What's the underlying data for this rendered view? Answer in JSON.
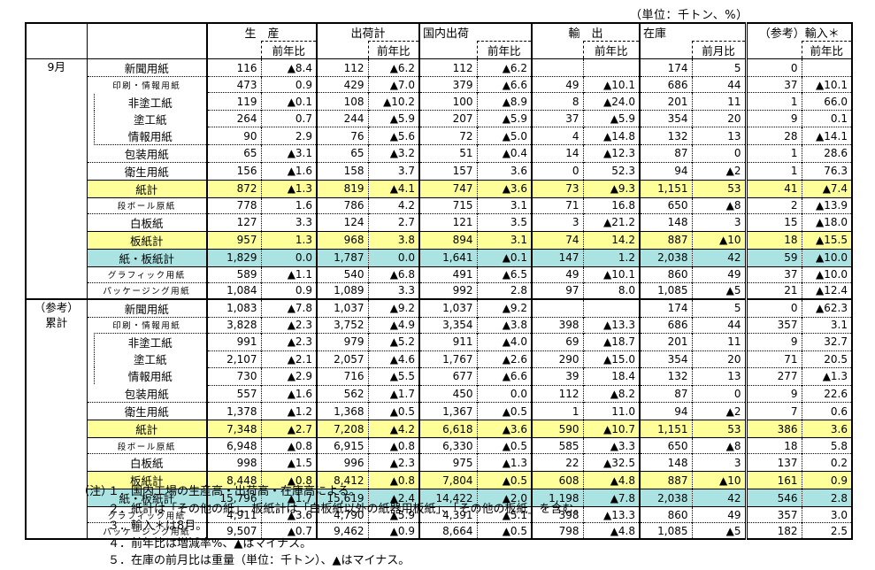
{
  "units_note": "（単位：千トン、%）",
  "colors": {
    "total_row_bg": "#FFFF99",
    "grand_total_row_bg": "#ABE3E3",
    "border": "#000000"
  },
  "table": {
    "column_groups": [
      {
        "label": "生　産",
        "sub_label": "前年比"
      },
      {
        "label": "出荷計",
        "sub_label": "前年比"
      },
      {
        "label": "国内出荷",
        "sub_label": "前年比"
      },
      {
        "label": "輸　出",
        "sub_label": "前年比"
      },
      {
        "label": "在庫",
        "sub_label": "前月比"
      },
      {
        "label": "（参考）輸入＊",
        "sub_label": "前年比"
      }
    ],
    "sections": [
      {
        "label": "9月",
        "label_lines": [
          "9月"
        ],
        "rows": [
          {
            "name": "新聞用紙",
            "type": "normal",
            "values": [
              "116",
              "▲8.4",
              "112",
              "▲6.2",
              "112",
              "▲6.2",
              "",
              "",
              "174",
              "5",
              "0",
              ""
            ]
          },
          {
            "name": "印刷・情報用紙",
            "type": "small",
            "values": [
              "473",
              "0.9",
              "429",
              "▲7.0",
              "379",
              "▲6.6",
              "49",
              "▲10.1",
              "686",
              "44",
              "37",
              "▲10.1"
            ]
          },
          {
            "name": "非塗工紙",
            "type": "sub-first",
            "values": [
              "119",
              "▲0.1",
              "108",
              "▲10.2",
              "100",
              "▲8.9",
              "8",
              "▲24.0",
              "201",
              "11",
              "1",
              "66.0"
            ]
          },
          {
            "name": "塗工紙",
            "type": "sub",
            "values": [
              "264",
              "0.7",
              "244",
              "▲5.9",
              "207",
              "▲5.9",
              "37",
              "▲5.9",
              "354",
              "20",
              "9",
              "0.1"
            ]
          },
          {
            "name": "情報用紙",
            "type": "sub-last",
            "values": [
              "90",
              "2.9",
              "76",
              "▲5.6",
              "72",
              "▲5.0",
              "4",
              "▲14.8",
              "132",
              "13",
              "28",
              "▲14.1"
            ]
          },
          {
            "name": "包装用紙",
            "type": "after-sub",
            "values": [
              "65",
              "▲3.1",
              "65",
              "▲3.2",
              "51",
              "▲0.4",
              "14",
              "▲12.3",
              "87",
              "0",
              "1",
              "28.6"
            ]
          },
          {
            "name": "衛生用紙",
            "type": "normal",
            "values": [
              "156",
              "▲1.6",
              "158",
              "3.7",
              "157",
              "3.6",
              "0",
              "52.3",
              "94",
              "▲2",
              "1",
              "76.3"
            ]
          },
          {
            "name": "紙計",
            "type": "total",
            "values": [
              "872",
              "▲1.3",
              "819",
              "▲4.1",
              "747",
              "▲3.6",
              "73",
              "▲9.3",
              "1,151",
              "53",
              "41",
              "▲7.4"
            ]
          },
          {
            "name": "段ボール原紙",
            "type": "small",
            "values": [
              "778",
              "1.6",
              "786",
              "4.2",
              "715",
              "3.1",
              "71",
              "16.8",
              "650",
              "▲8",
              "2",
              "▲13.9"
            ]
          },
          {
            "name": "白板紙",
            "type": "normal",
            "values": [
              "127",
              "3.3",
              "124",
              "2.7",
              "121",
              "3.5",
              "3",
              "▲21.2",
              "148",
              "3",
              "15",
              "▲18.0"
            ]
          },
          {
            "name": "板紙計",
            "type": "total",
            "values": [
              "957",
              "1.3",
              "968",
              "3.8",
              "894",
              "3.1",
              "74",
              "14.2",
              "887",
              "▲10",
              "18",
              "▲15.5"
            ]
          },
          {
            "name": "紙・板紙計",
            "type": "grand",
            "values": [
              "1,829",
              "0.0",
              "1,787",
              "0.0",
              "1,641",
              "▲0.1",
              "147",
              "1.2",
              "2,038",
              "42",
              "59",
              "▲10.0"
            ]
          },
          {
            "name": "グラフィック用紙",
            "type": "small",
            "values": [
              "589",
              "▲1.1",
              "540",
              "▲6.8",
              "491",
              "▲6.5",
              "49",
              "▲10.1",
              "860",
              "49",
              "37",
              "▲10.0"
            ]
          },
          {
            "name": "パッケージング用紙",
            "type": "small",
            "values": [
              "1,084",
              "0.9",
              "1,089",
              "3.3",
              "992",
              "2.8",
              "97",
              "8.0",
              "1,085",
              "▲5",
              "21",
              "▲12.4"
            ]
          }
        ]
      },
      {
        "label": "（参考）累計",
        "label_lines": [
          "（参考）",
          "累計"
        ],
        "rows": [
          {
            "name": "新聞用紙",
            "type": "normal",
            "values": [
              "1,083",
              "▲7.8",
              "1,037",
              "▲9.2",
              "1,037",
              "▲9.2",
              "",
              "",
              "174",
              "5",
              "0",
              "▲62.3"
            ]
          },
          {
            "name": "印刷・情報用紙",
            "type": "small",
            "values": [
              "3,828",
              "▲2.3",
              "3,752",
              "▲4.9",
              "3,354",
              "▲3.8",
              "398",
              "▲13.3",
              "686",
              "44",
              "357",
              "3.1"
            ]
          },
          {
            "name": "非塗工紙",
            "type": "sub-first",
            "values": [
              "991",
              "▲2.3",
              "979",
              "▲5.2",
              "911",
              "▲4.0",
              "69",
              "▲18.7",
              "201",
              "11",
              "9",
              "32.7"
            ]
          },
          {
            "name": "塗工紙",
            "type": "sub",
            "values": [
              "2,107",
              "▲2.1",
              "2,057",
              "▲4.6",
              "1,767",
              "▲2.6",
              "290",
              "▲15.0",
              "354",
              "20",
              "71",
              "20.5"
            ]
          },
          {
            "name": "情報用紙",
            "type": "sub-last",
            "values": [
              "730",
              "▲2.9",
              "716",
              "▲5.5",
              "677",
              "▲6.6",
              "39",
              "18.4",
              "132",
              "13",
              "277",
              "▲1.3"
            ]
          },
          {
            "name": "包装用紙",
            "type": "after-sub",
            "values": [
              "557",
              "▲1.6",
              "562",
              "▲1.7",
              "450",
              "0.0",
              "112",
              "▲8.2",
              "87",
              "0",
              "9",
              "22.6"
            ]
          },
          {
            "name": "衛生用紙",
            "type": "normal",
            "values": [
              "1,378",
              "▲1.2",
              "1,368",
              "▲0.5",
              "1,367",
              "▲0.5",
              "1",
              "11.0",
              "94",
              "▲2",
              "7",
              "0.6"
            ]
          },
          {
            "name": "紙計",
            "type": "total",
            "values": [
              "7,348",
              "▲2.7",
              "7,208",
              "▲4.2",
              "6,618",
              "▲3.6",
              "590",
              "▲10.7",
              "1,151",
              "53",
              "386",
              "3.6"
            ]
          },
          {
            "name": "段ボール原紙",
            "type": "small",
            "values": [
              "6,948",
              "▲0.8",
              "6,915",
              "▲0.8",
              "6,330",
              "▲0.5",
              "585",
              "▲3.3",
              "650",
              "▲8",
              "18",
              "5.8"
            ]
          },
          {
            "name": "白板紙",
            "type": "normal",
            "values": [
              "998",
              "▲1.5",
              "996",
              "▲2.3",
              "975",
              "▲1.3",
              "22",
              "▲32.5",
              "148",
              "3",
              "137",
              "0.2"
            ]
          },
          {
            "name": "板紙計",
            "type": "total",
            "values": [
              "8,448",
              "▲0.8",
              "8,412",
              "▲0.8",
              "7,804",
              "▲0.5",
              "608",
              "▲4.8",
              "887",
              "▲10",
              "161",
              "0.9"
            ]
          },
          {
            "name": "紙・板紙計",
            "type": "grand",
            "values": [
              "15,796",
              "▲1.7",
              "15,619",
              "▲2.4",
              "14,422",
              "▲2.0",
              "1,198",
              "▲7.8",
              "2,038",
              "42",
              "546",
              "2.8"
            ]
          },
          {
            "name": "グラフィック用紙",
            "type": "small",
            "values": [
              "4,911",
              "▲3.6",
              "4,790",
              "▲5.9",
              "4,391",
              "▲5.1",
              "398",
              "▲13.3",
              "860",
              "49",
              "357",
              "3.0"
            ]
          },
          {
            "name": "パッケージング用紙",
            "type": "small",
            "values": [
              "9,507",
              "▲0.7",
              "9,462",
              "▲0.9",
              "8,664",
              "▲0.5",
              "798",
              "▲4.8",
              "1,085",
              "▲5",
              "182",
              "2.5"
            ]
          }
        ]
      }
    ]
  },
  "notes": {
    "label": "（注）",
    "items": [
      "１．国内工場の生産高・出荷高・在庫高による。",
      "２．紙計は「その他の紙」、板紙計は「白板紙以外の紙器用板紙」、「その他の板紙」を含む。",
      "３．輸入＊は8月。",
      "４．前年比は増減率%、▲はマイナス。",
      "５．在庫の前月比は重量（単位：千トン）、▲はマイナス。"
    ]
  }
}
